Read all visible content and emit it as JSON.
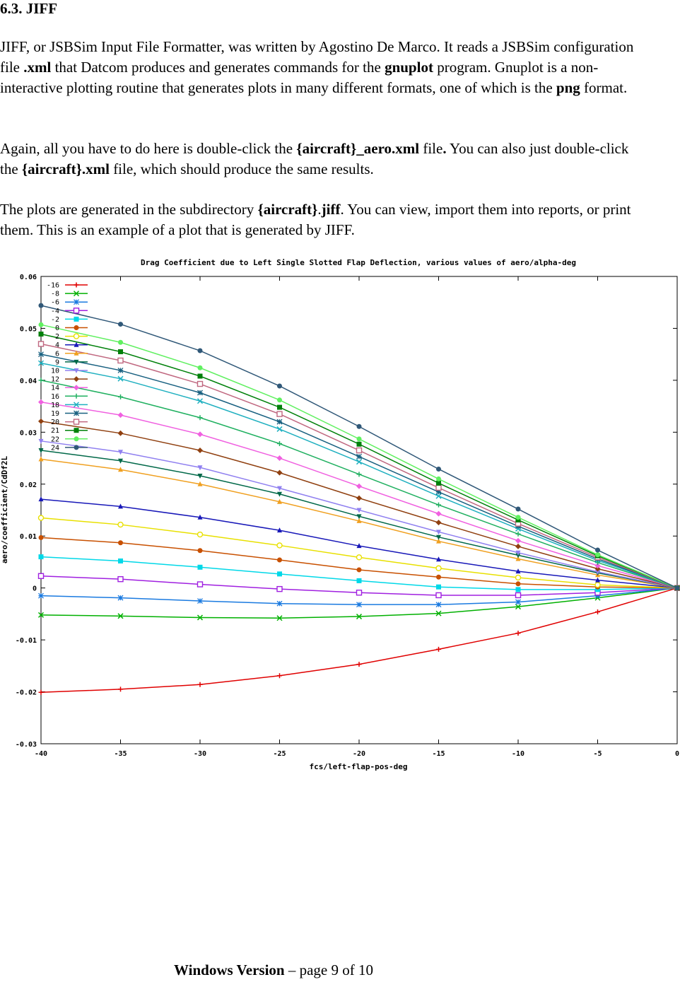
{
  "heading": "6.3. JIFF",
  "paragraph1": {
    "t1": "JIFF, or JSBSim Input File Formatter, was written by Agostino De Marco. It reads a JSBSim configuration file ",
    "b1": ".xml",
    "t2": " that Datcom produces and generates commands for the ",
    "b2": "gnuplot",
    "t3": " program. Gnuplot is a non-interactive plotting routine that generates plots in many different formats, one of which is the ",
    "b3": "png",
    "t4": " format."
  },
  "paragraph2": {
    "t1": "Again, all you have to do here is double-click the ",
    "b1": "{aircraft}_aero.xml",
    "t2": " file",
    "b2": ".",
    "t3": " You can also just double-click the ",
    "b3": "{aircraft}.xml",
    "t4": " file, which should produce the same results."
  },
  "paragraph3": {
    "t1": "The plots are generated in the subdirectory ",
    "b1": "{aircraft}",
    "t2": ".",
    "b2": "jiff",
    "t3": ". You can view, import them into reports, or print them. This is an example of a plot that is generated by JIFF."
  },
  "chart_data": {
    "type": "line",
    "title": "Drag Coefficient due to Left Single Slotted Flap Deflection, various values of aero/alpha-deg",
    "xlabel": "fcs/left-flap-pos-deg",
    "ylabel": "aero/coefficient/CdDf2L",
    "xlim": [
      -40,
      0
    ],
    "ylim": [
      -0.03,
      0.06
    ],
    "x_ticks": [
      "-40",
      "-35",
      "-30",
      "-25",
      "-20",
      "-15",
      "-10",
      "-5",
      "0"
    ],
    "y_ticks": [
      "-0.03",
      "-0.02",
      "-0.01",
      "0",
      "0.01",
      "0.02",
      "0.03",
      "0.04",
      "0.05",
      "0.06"
    ],
    "grid": false,
    "legend_position": "top-left",
    "x": [
      -40,
      -35,
      -30,
      -25,
      -20,
      -15,
      -10,
      -5,
      0
    ],
    "series": [
      {
        "name": "-16",
        "color": "#e00000",
        "marker": "plus",
        "values": [
          -0.0201,
          -0.0195,
          -0.0186,
          -0.0169,
          -0.0147,
          -0.0118,
          -0.0087,
          -0.0046,
          0.0
        ]
      },
      {
        "name": "-8",
        "color": "#00b000",
        "marker": "cross",
        "values": [
          -0.0052,
          -0.0054,
          -0.0057,
          -0.0058,
          -0.0055,
          -0.0049,
          -0.0036,
          -0.0019,
          0.0
        ]
      },
      {
        "name": "-6",
        "color": "#1a7ae0",
        "marker": "star",
        "values": [
          -0.0015,
          -0.0019,
          -0.0025,
          -0.003,
          -0.0032,
          -0.0032,
          -0.0027,
          -0.0015,
          0.0
        ]
      },
      {
        "name": "-4",
        "color": "#a020e0",
        "marker": "box",
        "values": [
          0.0023,
          0.0017,
          0.0007,
          -0.0002,
          -0.0009,
          -0.0014,
          -0.0014,
          -0.0009,
          0.0
        ]
      },
      {
        "name": "-2",
        "color": "#00d8e8",
        "marker": "fbox",
        "values": [
          0.006,
          0.0052,
          0.004,
          0.0027,
          0.0014,
          0.0002,
          -0.0003,
          -0.0003,
          0.0
        ]
      },
      {
        "name": "0",
        "color": "#c85000",
        "marker": "fcircle",
        "values": [
          0.0097,
          0.0087,
          0.0072,
          0.0054,
          0.0035,
          0.0021,
          0.0008,
          0.0002,
          0.0
        ]
      },
      {
        "name": "2",
        "color": "#e8e000",
        "marker": "circle",
        "values": [
          0.0135,
          0.0122,
          0.0103,
          0.0082,
          0.0059,
          0.0038,
          0.002,
          0.0006,
          0.0
        ]
      },
      {
        "name": "4",
        "color": "#1818b8",
        "marker": "ftriangle",
        "values": [
          0.0171,
          0.0157,
          0.0136,
          0.0111,
          0.0081,
          0.0055,
          0.0032,
          0.0015,
          0.0
        ]
      },
      {
        "name": "6",
        "color": "#f0a020",
        "marker": "triangle",
        "values": [
          0.0248,
          0.0228,
          0.02,
          0.0166,
          0.0129,
          0.009,
          0.0056,
          0.0025,
          0.0
        ]
      },
      {
        "name": "9",
        "color": "#006848",
        "marker": "fdtriangle",
        "values": [
          0.0265,
          0.0245,
          0.0216,
          0.0181,
          0.0138,
          0.0098,
          0.0063,
          0.0029,
          0.0
        ]
      },
      {
        "name": "10",
        "color": "#9080f0",
        "marker": "dtriangle",
        "values": [
          0.0283,
          0.0262,
          0.0232,
          0.0192,
          0.015,
          0.0108,
          0.0068,
          0.0031,
          0.0
        ]
      },
      {
        "name": "12",
        "color": "#904010",
        "marker": "fdiamond",
        "values": [
          0.0321,
          0.0298,
          0.0265,
          0.0222,
          0.0173,
          0.0126,
          0.008,
          0.0037,
          0.0
        ]
      },
      {
        "name": "14",
        "color": "#f060e0",
        "marker": "diamond",
        "values": [
          0.0358,
          0.0333,
          0.0296,
          0.025,
          0.0196,
          0.0143,
          0.0091,
          0.0043,
          0.0
        ]
      },
      {
        "name": "16",
        "color": "#20b060",
        "marker": "plus",
        "values": [
          0.04,
          0.0368,
          0.0328,
          0.0278,
          0.0219,
          0.016,
          0.0104,
          0.0049,
          0.0
        ]
      },
      {
        "name": "18",
        "color": "#20b0c0",
        "marker": "cross",
        "values": [
          0.0433,
          0.0403,
          0.036,
          0.0306,
          0.0243,
          0.0177,
          0.0114,
          0.0053,
          0.0
        ]
      },
      {
        "name": "19",
        "color": "#186080",
        "marker": "star",
        "values": [
          0.045,
          0.0419,
          0.0376,
          0.032,
          0.0253,
          0.0185,
          0.0119,
          0.0056,
          0.0
        ]
      },
      {
        "name": "20",
        "color": "#c06880",
        "marker": "box",
        "values": [
          0.047,
          0.0438,
          0.0393,
          0.0335,
          0.0265,
          0.0193,
          0.0124,
          0.0059,
          0.0
        ]
      },
      {
        "name": "21",
        "color": "#00800a",
        "marker": "fbox",
        "values": [
          0.0489,
          0.0455,
          0.0408,
          0.0348,
          0.0277,
          0.0202,
          0.0131,
          0.0062,
          0.0
        ]
      },
      {
        "name": "22",
        "color": "#60f060",
        "marker": "fcircle",
        "values": [
          0.0507,
          0.0473,
          0.0424,
          0.0362,
          0.0287,
          0.021,
          0.0136,
          0.0064,
          0.0
        ]
      },
      {
        "name": "24",
        "color": "#305878",
        "marker": "fcircle",
        "values": [
          0.0544,
          0.0508,
          0.0457,
          0.0389,
          0.0311,
          0.0229,
          0.0152,
          0.0073,
          0.0
        ]
      }
    ]
  },
  "footer": {
    "bold": "Windows Version",
    "rest": " – page 9 of 10"
  }
}
